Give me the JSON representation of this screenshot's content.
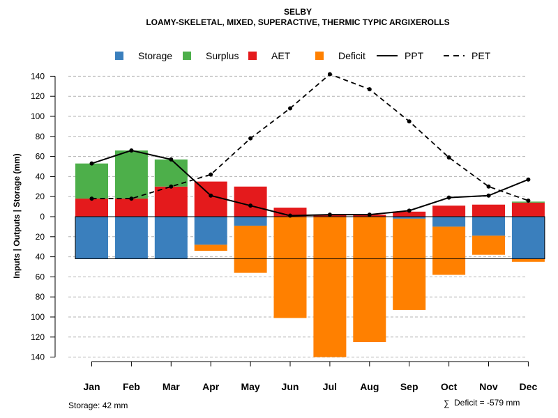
{
  "chart_data": {
    "type": "bar",
    "title": "SELBY",
    "subtitle": "LOAMY-SKELETAL, MIXED, SUPERACTIVE, THERMIC TYPIC ARGIXEROLLS",
    "ylabel": "Inputs | Outputs | Storage    (mm)",
    "categories": [
      "Jan",
      "Feb",
      "Mar",
      "Apr",
      "May",
      "Jun",
      "Jul",
      "Aug",
      "Sep",
      "Oct",
      "Nov",
      "Dec"
    ],
    "ylim": [
      -140,
      145
    ],
    "yticks": [
      140,
      120,
      100,
      80,
      60,
      40,
      20,
      0,
      20,
      40,
      60,
      80,
      100,
      120,
      140
    ],
    "grid": true,
    "legend_position": "top",
    "colors": {
      "storage": "#3a7fbd",
      "surplus": "#4daf4a",
      "aet": "#e41a1c",
      "deficit": "#ff8000",
      "line": "#000000",
      "grid": "#b3b3b3"
    },
    "legend": [
      {
        "key": "storage",
        "label": "Storage",
        "kind": "square"
      },
      {
        "key": "surplus",
        "label": "Surplus",
        "kind": "square"
      },
      {
        "key": "aet",
        "label": "AET",
        "kind": "square"
      },
      {
        "key": "deficit",
        "label": "Deficit",
        "kind": "square"
      },
      {
        "key": "ppt",
        "label": "PPT",
        "kind": "solid"
      },
      {
        "key": "pet",
        "label": "PET",
        "kind": "dashed"
      }
    ],
    "series": [
      {
        "name": "AET",
        "values": [
          18,
          18,
          30,
          35,
          30,
          9,
          2,
          2,
          5,
          11,
          12,
          14
        ]
      },
      {
        "name": "Surplus",
        "values": [
          35,
          48,
          27,
          0,
          0,
          0,
          0,
          0,
          0,
          0,
          0,
          1
        ]
      },
      {
        "name": "Storage",
        "values": [
          42,
          42,
          42,
          28,
          9,
          0,
          0,
          0,
          2,
          10,
          19,
          42
        ]
      },
      {
        "name": "Deficit",
        "values": [
          0,
          0,
          0,
          6,
          47,
          101,
          140,
          125,
          91,
          48,
          19,
          3
        ]
      },
      {
        "name": "PPT",
        "values": [
          53,
          66,
          57,
          21,
          11,
          1,
          2,
          2,
          6,
          19,
          21,
          37
        ]
      },
      {
        "name": "PET",
        "values": [
          18,
          18,
          30,
          42,
          78,
          108,
          142,
          127,
          95,
          59,
          30,
          16
        ]
      }
    ],
    "storage_capacity": 42,
    "footer_left": "Storage: 42 mm",
    "footer_right": "Deficit = -579 mm",
    "footer_symbol": "∑"
  }
}
